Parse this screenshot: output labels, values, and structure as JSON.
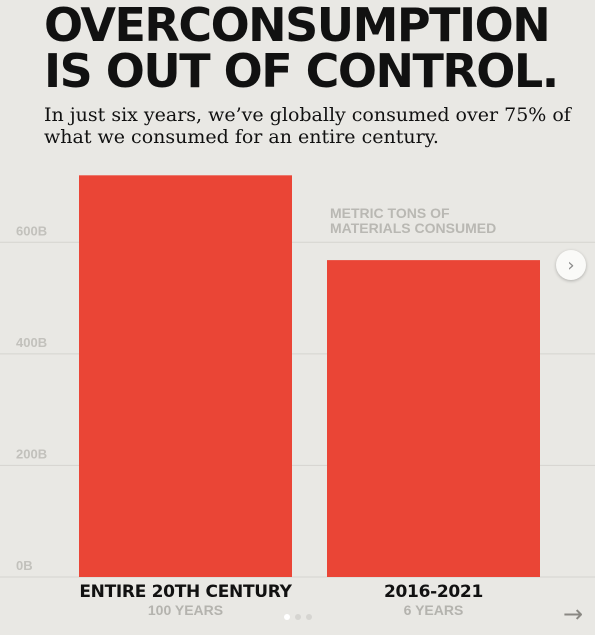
{
  "headline": [
    "OVERCONSUMPTION",
    "IS OUT OF CONTROL."
  ],
  "subtitle": [
    "In just six years, we’ve globally consumed over 75% of",
    "what we consumed for an entire century."
  ],
  "chart_data": {
    "type": "bar",
    "title": "OVERCONSUMPTION IS OUT OF CONTROL.",
    "subtitle": "In just six years, we’ve globally consumed over 75% of what we consumed for an entire century.",
    "categories": [
      "ENTIRE 20TH CENTURY",
      "2016-2021"
    ],
    "category_sublabels": [
      "100 YEARS",
      "6 YEARS"
    ],
    "values": [
      720,
      568
    ],
    "yticks": [
      0,
      200,
      400,
      600
    ],
    "ytick_labels": [
      "0B",
      "200B",
      "400B",
      "600B"
    ],
    "ylim": [
      0,
      760
    ],
    "annotation": [
      "METRIC TONS OF",
      "MATERIALS CONSUMED"
    ],
    "grid": true,
    "bar_color": "#ea4536"
  },
  "nav": {
    "next_icon": "chevron-right-icon",
    "forward_icon": "arrow-right-icon",
    "pages": 3,
    "current_page": 1
  }
}
